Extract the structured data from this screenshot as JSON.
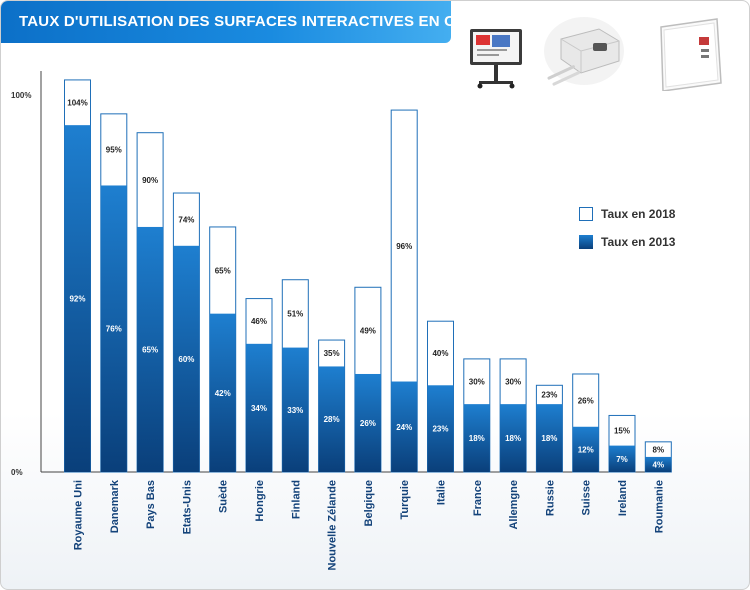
{
  "header": {
    "title": "TAUX D'UTILISATION DES SURFACES INTERACTIVES EN CLASSE"
  },
  "products": [
    {
      "icon": "interactive-board-on-stand-icon"
    },
    {
      "icon": "projector-with-pens-icon"
    },
    {
      "icon": "whiteboard-icon"
    }
  ],
  "colors": {
    "series_2013": "#0d5fa3",
    "series_2018_fill": "#ffffff",
    "series_2018_stroke": "#1f6fb8",
    "axis": "#444444",
    "category_label": "#14437a",
    "title_banner": "#1a85dc"
  },
  "chart_data": {
    "type": "bar",
    "stacked": "overlay",
    "categories": [
      "Royaume Uni",
      "Danemark",
      "Pays Bas",
      "Etats-Unis",
      "Suède",
      "Hongrie",
      "Finland",
      "Nouvelle Zélande",
      "Belgique",
      "Turquie",
      "Italie",
      "France",
      "Allemgne",
      "Russie",
      "Suisse",
      "Ireland",
      "Roumanie"
    ],
    "series": [
      {
        "name": "Taux en 2013",
        "values": [
          92,
          76,
          65,
          60,
          42,
          34,
          33,
          28,
          26,
          24,
          23,
          18,
          18,
          18,
          12,
          7,
          4
        ],
        "labels": [
          "92%",
          "76%",
          "65%",
          "60%",
          "42%",
          "34%",
          "33%",
          "28%",
          "26%",
          "24%",
          "23%",
          "18%",
          "18%",
          "18%",
          "12%",
          "7%",
          "4%"
        ]
      },
      {
        "name": "Taux en 2018",
        "values": [
          104,
          95,
          90,
          74,
          65,
          46,
          51,
          35,
          49,
          96,
          40,
          30,
          30,
          23,
          26,
          15,
          8
        ],
        "labels": [
          "104%",
          "95%",
          "90%",
          "74%",
          "65%",
          "46%",
          "51%",
          "35%",
          "49%",
          "96%",
          "40%",
          "30%",
          "30%",
          "23%",
          "26%",
          "15%",
          "8%"
        ]
      }
    ],
    "y_ticks": [
      {
        "value": 0,
        "label": "0%"
      },
      {
        "value": 100,
        "label": "100%"
      }
    ],
    "ylim": [
      0,
      100
    ],
    "legend_position": "right",
    "grid": false
  }
}
